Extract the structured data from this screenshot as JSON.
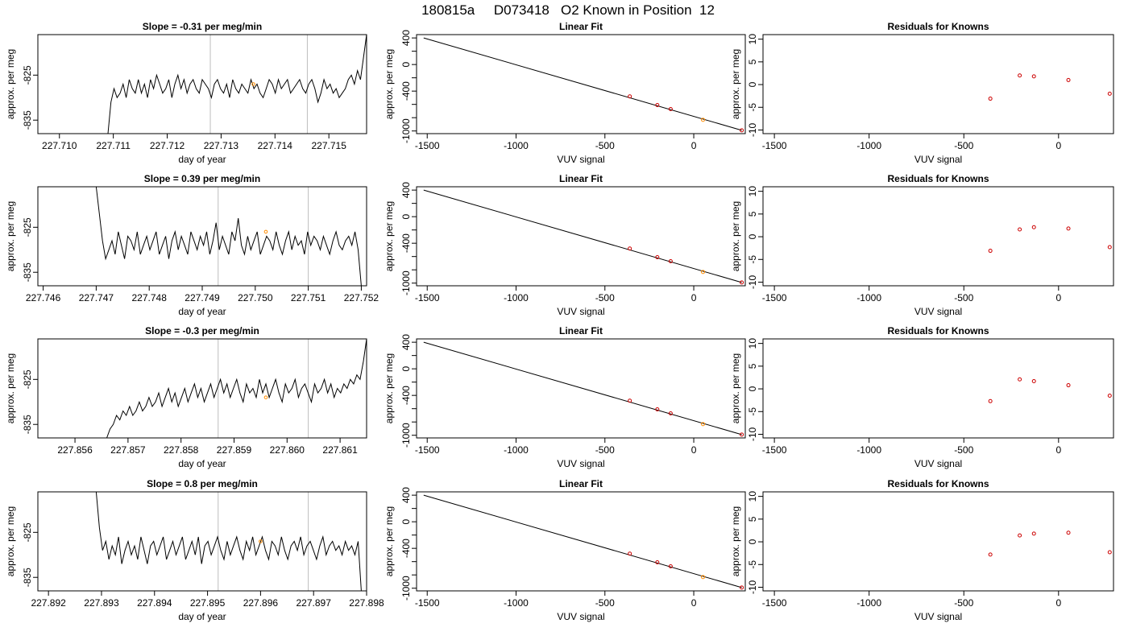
{
  "figure": {
    "title": "180815a     D073418   O2 Known in Position  12"
  },
  "colors": {
    "line": "#000000",
    "known_point": "#cc0000",
    "sample_point": "#ff8c00",
    "guide": "#bdbdbd"
  },
  "chart_data": [
    {
      "type": "line",
      "row": 0,
      "col": 0,
      "title": "Slope =  -0.31  per meg/min",
      "xlabel": "day of year",
      "ylabel": "approx. per meg",
      "xlim": [
        227.7096,
        227.7157
      ],
      "ylim": [
        -838,
        -816
      ],
      "xticks": [
        "227.710",
        "227.711",
        "227.712",
        "227.713",
        "227.714",
        "227.715"
      ],
      "xtick_values": [
        227.71,
        227.711,
        227.712,
        227.713,
        227.714,
        227.715
      ],
      "yticks": [
        "-825",
        "-835"
      ],
      "ytick_values": [
        -825,
        -835
      ],
      "guides_x": [
        227.7128,
        227.7146
      ],
      "trace_x_range": [
        227.7109,
        227.7157
      ],
      "trace_y": [
        -838,
        -831,
        -828,
        -830,
        -829,
        -827,
        -830,
        -826,
        -828,
        -829,
        -826,
        -829,
        -827,
        -830,
        -826,
        -828,
        -825,
        -827,
        -829,
        -828,
        -826,
        -830,
        -827,
        -825,
        -828,
        -826,
        -829,
        -827,
        -826,
        -828,
        -829,
        -826,
        -827,
        -828,
        -830,
        -827,
        -826,
        -828,
        -829,
        -827,
        -830,
        -826,
        -828,
        -829,
        -827,
        -828,
        -829,
        -826,
        -828,
        -827,
        -829,
        -830,
        -828,
        -826,
        -827,
        -829,
        -826,
        -828,
        -827,
        -826,
        -829,
        -828,
        -827,
        -826,
        -828,
        -829,
        -827,
        -826,
        -828,
        -831,
        -829,
        -826,
        -828,
        -827,
        -829,
        -828,
        -830,
        -829,
        -828,
        -826,
        -825,
        -827,
        -824,
        -826,
        -821,
        -816
      ],
      "marker": {
        "x": 227.7136,
        "y": -827
      }
    },
    {
      "type": "line",
      "row": 1,
      "col": 0,
      "title": "Slope =  0.39  per meg/min",
      "xlabel": "day of year",
      "ylabel": "approx. per meg",
      "xlim": [
        227.7459,
        227.7521
      ],
      "ylim": [
        -838,
        -816
      ],
      "xticks": [
        "227.746",
        "227.747",
        "227.748",
        "227.749",
        "227.750",
        "227.751",
        "227.752"
      ],
      "xtick_values": [
        227.746,
        227.747,
        227.748,
        227.749,
        227.75,
        227.751,
        227.752
      ],
      "yticks": [
        "-825",
        "-835"
      ],
      "ytick_values": [
        -825,
        -835
      ],
      "guides_x": [
        227.7493,
        227.751
      ],
      "trace_x_range": [
        227.747,
        227.752
      ],
      "trace_y": [
        -816,
        -822,
        -828,
        -832,
        -830,
        -828,
        -831,
        -826,
        -829,
        -832,
        -827,
        -828,
        -830,
        -826,
        -831,
        -829,
        -827,
        -830,
        -828,
        -826,
        -831,
        -829,
        -827,
        -832,
        -828,
        -826,
        -830,
        -827,
        -829,
        -831,
        -826,
        -828,
        -830,
        -827,
        -829,
        -826,
        -831,
        -828,
        -824,
        -830,
        -827,
        -829,
        -831,
        -826,
        -828,
        -823,
        -829,
        -831,
        -827,
        -830,
        -828,
        -826,
        -831,
        -829,
        -827,
        -828,
        -830,
        -826,
        -829,
        -831,
        -828,
        -826,
        -830,
        -827,
        -829,
        -828,
        -831,
        -826,
        -829,
        -827,
        -828,
        -830,
        -827,
        -829,
        -831,
        -828,
        -826,
        -829,
        -830,
        -828,
        -827,
        -829,
        -826,
        -830,
        -838
      ],
      "marker": {
        "x": 227.7502,
        "y": -826
      }
    },
    {
      "type": "line",
      "row": 2,
      "col": 0,
      "title": "Slope =  -0.3  per meg/min",
      "xlabel": "day of year",
      "ylabel": "approx. per meg",
      "xlim": [
        227.8553,
        227.8615
      ],
      "ylim": [
        -838,
        -816
      ],
      "xticks": [
        "227.856",
        "227.857",
        "227.858",
        "227.859",
        "227.860",
        "227.861"
      ],
      "xtick_values": [
        227.856,
        227.857,
        227.858,
        227.859,
        227.86,
        227.861
      ],
      "yticks": [
        "-825",
        "-835"
      ],
      "ytick_values": [
        -825,
        -835
      ],
      "guides_x": [
        227.8587,
        227.8604
      ],
      "trace_x_range": [
        227.8566,
        227.8615
      ],
      "trace_y": [
        -838,
        -836,
        -835,
        -833,
        -834,
        -832,
        -833,
        -831,
        -833,
        -832,
        -830,
        -832,
        -831,
        -829,
        -831,
        -830,
        -828,
        -831,
        -829,
        -827,
        -830,
        -828,
        -831,
        -829,
        -827,
        -830,
        -828,
        -826,
        -829,
        -827,
        -830,
        -828,
        -826,
        -829,
        -827,
        -825,
        -828,
        -826,
        -829,
        -827,
        -825,
        -828,
        -830,
        -826,
        -828,
        -827,
        -829,
        -825,
        -828,
        -826,
        -829,
        -827,
        -825,
        -828,
        -830,
        -826,
        -828,
        -827,
        -825,
        -829,
        -827,
        -826,
        -828,
        -830,
        -826,
        -828,
        -827,
        -825,
        -828,
        -826,
        -829,
        -827,
        -828,
        -826,
        -827,
        -825,
        -826,
        -824,
        -825,
        -821,
        -816
      ],
      "marker": {
        "x": 227.8596,
        "y": -829
      }
    },
    {
      "type": "line",
      "row": 3,
      "col": 0,
      "title": "Slope =  0.8  per meg/min",
      "xlabel": "day of year",
      "ylabel": "approx. per meg",
      "xlim": [
        227.8918,
        227.898
      ],
      "ylim": [
        -838,
        -816
      ],
      "xticks": [
        "227.892",
        "227.893",
        "227.894",
        "227.895",
        "227.896",
        "227.897",
        "227.898"
      ],
      "xtick_values": [
        227.892,
        227.893,
        227.894,
        227.895,
        227.896,
        227.897,
        227.898
      ],
      "yticks": [
        "-825",
        "-835"
      ],
      "ytick_values": [
        -825,
        -835
      ],
      "guides_x": [
        227.8952,
        227.8969
      ],
      "trace_x_range": [
        227.8929,
        227.8979
      ],
      "trace_y": [
        -816,
        -824,
        -829,
        -827,
        -831,
        -828,
        -830,
        -826,
        -832,
        -829,
        -827,
        -830,
        -828,
        -831,
        -826,
        -829,
        -832,
        -828,
        -827,
        -830,
        -828,
        -826,
        -831,
        -829,
        -827,
        -830,
        -828,
        -826,
        -831,
        -829,
        -827,
        -830,
        -826,
        -832,
        -828,
        -827,
        -830,
        -828,
        -826,
        -829,
        -831,
        -827,
        -830,
        -828,
        -826,
        -829,
        -831,
        -827,
        -829,
        -826,
        -830,
        -828,
        -826,
        -829,
        -831,
        -827,
        -828,
        -830,
        -826,
        -829,
        -831,
        -828,
        -827,
        -829,
        -826,
        -830,
        -828,
        -827,
        -829,
        -831,
        -828,
        -826,
        -830,
        -828,
        -827,
        -829,
        -828,
        -830,
        -827,
        -829,
        -828,
        -830,
        -827,
        -838
      ],
      "marker": {
        "x": 227.896,
        "y": -827
      }
    },
    {
      "type": "scatter",
      "row": 0,
      "col": 1,
      "title": "Linear Fit",
      "xlabel": "VUV signal",
      "ylabel": "approx. per meg",
      "xlim": [
        -1560,
        290
      ],
      "ylim": [
        -1040,
        450
      ],
      "xticks": [
        "-1500",
        "-1000",
        "-500",
        "0"
      ],
      "xtick_values": [
        -1500,
        -1000,
        -500,
        0
      ],
      "yticks": [
        "-1000",
        "-800",
        "-600",
        "-400",
        "-200",
        "0",
        "200",
        "400"
      ],
      "ytick_values": [
        -1000,
        -800,
        -600,
        -400,
        -200,
        0,
        200,
        400
      ],
      "ytick_labeled": [
        "-1000",
        "-400",
        "0",
        "400"
      ],
      "fit_line": [
        [
          -1520,
          400
        ],
        [
          270,
          -990
        ]
      ],
      "known_points": [
        [
          -360,
          -480
        ],
        [
          -205,
          -610
        ],
        [
          -130,
          -670
        ],
        [
          270,
          -990
        ]
      ],
      "sample_points": [
        [
          52,
          -832
        ]
      ]
    },
    {
      "type": "scatter",
      "row": 1,
      "col": 1,
      "title": "Linear Fit",
      "xlabel": "VUV signal",
      "ylabel": "approx. per meg",
      "xlim": [
        -1560,
        290
      ],
      "ylim": [
        -1040,
        450
      ],
      "xticks": [
        "-1500",
        "-1000",
        "-500",
        "0"
      ],
      "xtick_values": [
        -1500,
        -1000,
        -500,
        0
      ],
      "yticks": [
        "-1000",
        "-800",
        "-600",
        "-400",
        "-200",
        "0",
        "200",
        "400"
      ],
      "ytick_values": [
        -1000,
        -800,
        -600,
        -400,
        -200,
        0,
        200,
        400
      ],
      "ytick_labeled": [
        "-1000",
        "-400",
        "0",
        "400"
      ],
      "fit_line": [
        [
          -1520,
          400
        ],
        [
          270,
          -990
        ]
      ],
      "known_points": [
        [
          -360,
          -480
        ],
        [
          -205,
          -610
        ],
        [
          -130,
          -670
        ],
        [
          270,
          -990
        ]
      ],
      "sample_points": [
        [
          52,
          -832
        ]
      ]
    },
    {
      "type": "scatter",
      "row": 2,
      "col": 1,
      "title": "Linear Fit",
      "xlabel": "VUV signal",
      "ylabel": "approx. per meg",
      "xlim": [
        -1560,
        290
      ],
      "ylim": [
        -1040,
        450
      ],
      "xticks": [
        "-1500",
        "-1000",
        "-500",
        "0"
      ],
      "xtick_values": [
        -1500,
        -1000,
        -500,
        0
      ],
      "yticks": [
        "-1000",
        "-800",
        "-600",
        "-400",
        "-200",
        "0",
        "200",
        "400"
      ],
      "ytick_values": [
        -1000,
        -800,
        -600,
        -400,
        -200,
        0,
        200,
        400
      ],
      "ytick_labeled": [
        "-1000",
        "-400",
        "0",
        "400"
      ],
      "fit_line": [
        [
          -1520,
          400
        ],
        [
          270,
          -990
        ]
      ],
      "known_points": [
        [
          -360,
          -480
        ],
        [
          -205,
          -610
        ],
        [
          -130,
          -670
        ],
        [
          270,
          -990
        ]
      ],
      "sample_points": [
        [
          52,
          -832
        ]
      ]
    },
    {
      "type": "scatter",
      "row": 3,
      "col": 1,
      "title": "Linear Fit",
      "xlabel": "VUV signal",
      "ylabel": "approx. per meg",
      "xlim": [
        -1560,
        290
      ],
      "ylim": [
        -1040,
        450
      ],
      "xticks": [
        "-1500",
        "-1000",
        "-500",
        "0"
      ],
      "xtick_values": [
        -1500,
        -1000,
        -500,
        0
      ],
      "yticks": [
        "-1000",
        "-800",
        "-600",
        "-400",
        "-200",
        "0",
        "200",
        "400"
      ],
      "ytick_values": [
        -1000,
        -800,
        -600,
        -400,
        -200,
        0,
        200,
        400
      ],
      "ytick_labeled": [
        "-1000",
        "-400",
        "0",
        "400"
      ],
      "fit_line": [
        [
          -1520,
          400
        ],
        [
          270,
          -990
        ]
      ],
      "known_points": [
        [
          -360,
          -480
        ],
        [
          -205,
          -610
        ],
        [
          -130,
          -670
        ],
        [
          270,
          -990
        ]
      ],
      "sample_points": [
        [
          52,
          -832
        ]
      ]
    },
    {
      "type": "scatter",
      "row": 0,
      "col": 2,
      "title": "Residuals for Knowns",
      "xlabel": "VUV signal",
      "ylabel": "approx. per meg",
      "xlim": [
        -1560,
        290
      ],
      "ylim": [
        -10.8,
        11
      ],
      "xticks": [
        "-1500",
        "-1000",
        "-500",
        "0"
      ],
      "xtick_values": [
        -1500,
        -1000,
        -500,
        0
      ],
      "yticks": [
        "-10",
        "-5",
        "0",
        "5",
        "10"
      ],
      "ytick_values": [
        -10,
        -5,
        0,
        5,
        10
      ],
      "known_points": [
        [
          -360,
          -3.1
        ],
        [
          -205,
          2.0
        ],
        [
          -130,
          1.8
        ],
        [
          52,
          1.0
        ],
        [
          270,
          -2.0
        ]
      ]
    },
    {
      "type": "scatter",
      "row": 1,
      "col": 2,
      "title": "Residuals for Knowns",
      "xlabel": "VUV signal",
      "ylabel": "approx. per meg",
      "xlim": [
        -1560,
        290
      ],
      "ylim": [
        -10.8,
        11
      ],
      "xticks": [
        "-1500",
        "-1000",
        "-500",
        "0"
      ],
      "xtick_values": [
        -1500,
        -1000,
        -500,
        0
      ],
      "yticks": [
        "-10",
        "-5",
        "0",
        "5",
        "10"
      ],
      "ytick_values": [
        -10,
        -5,
        0,
        5,
        10
      ],
      "known_points": [
        [
          -360,
          -3.1
        ],
        [
          -205,
          1.6
        ],
        [
          -130,
          2.1
        ],
        [
          52,
          1.8
        ],
        [
          270,
          -2.3
        ]
      ]
    },
    {
      "type": "scatter",
      "row": 2,
      "col": 2,
      "title": "Residuals for Knowns",
      "xlabel": "VUV signal",
      "ylabel": "approx. per meg",
      "xlim": [
        -1560,
        290
      ],
      "ylim": [
        -10.8,
        11
      ],
      "xticks": [
        "-1500",
        "-1000",
        "-500",
        "0"
      ],
      "xtick_values": [
        -1500,
        -1000,
        -500,
        0
      ],
      "yticks": [
        "-10",
        "-5",
        "0",
        "5",
        "10"
      ],
      "ytick_values": [
        -10,
        -5,
        0,
        5,
        10
      ],
      "known_points": [
        [
          -360,
          -2.7
        ],
        [
          -205,
          2.1
        ],
        [
          -130,
          1.7
        ],
        [
          52,
          0.8
        ],
        [
          270,
          -1.5
        ]
      ]
    },
    {
      "type": "scatter",
      "row": 3,
      "col": 2,
      "title": "Residuals for Knowns",
      "xlabel": "VUV signal",
      "ylabel": "approx. per meg",
      "xlim": [
        -1560,
        290
      ],
      "ylim": [
        -10.8,
        11
      ],
      "xticks": [
        "-1500",
        "-1000",
        "-500",
        "0"
      ],
      "xtick_values": [
        -1500,
        -1000,
        -500,
        0
      ],
      "yticks": [
        "-10",
        "-5",
        "0",
        "5",
        "10"
      ],
      "ytick_values": [
        -10,
        -5,
        0,
        5,
        10
      ],
      "known_points": [
        [
          -360,
          -2.8
        ],
        [
          -205,
          1.4
        ],
        [
          -130,
          1.8
        ],
        [
          52,
          2.0
        ],
        [
          270,
          -2.3
        ]
      ]
    }
  ]
}
